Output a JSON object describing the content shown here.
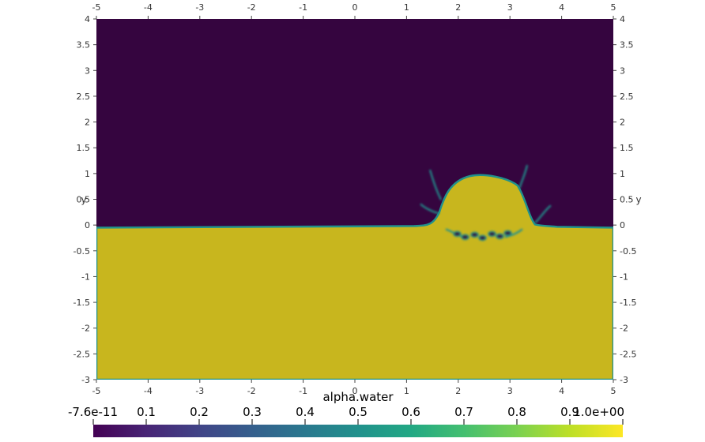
{
  "chart_data": {
    "type": "heatmap",
    "field": "alpha.water",
    "x_axis": {
      "range": [
        -5,
        5
      ],
      "ticks": [
        "-5",
        "-4",
        "-3",
        "-2",
        "-1",
        "0",
        "1",
        "2",
        "3",
        "4",
        "5"
      ]
    },
    "y_axis": {
      "label": "y",
      "range": [
        -3,
        4
      ],
      "ticks": [
        "-3",
        "-2.5",
        "-2",
        "-1.5",
        "-1",
        "-0.5",
        "0",
        "0.5",
        "1",
        "1.5",
        "2",
        "2.5",
        "3",
        "3.5",
        "4"
      ]
    },
    "colorbar": {
      "title": "alpha.water",
      "colormap": "viridis",
      "range": [
        -7.6e-11,
        1.0
      ],
      "labels": [
        "-7.6e-11",
        "0.1",
        "0.2",
        "0.3",
        "0.4",
        "0.5",
        "0.6",
        "0.7",
        "0.8",
        "0.9",
        "1.0e+00"
      ]
    },
    "regions": {
      "air_value": 0,
      "water_value": 1,
      "free_surface_y": -0.05,
      "splash_crown": {
        "x_range": [
          1.3,
          3.7
        ],
        "top_y": 0.95
      }
    },
    "colors": {
      "air": "#35053f",
      "water": "#c8b61e",
      "interface": "#21918c"
    }
  }
}
